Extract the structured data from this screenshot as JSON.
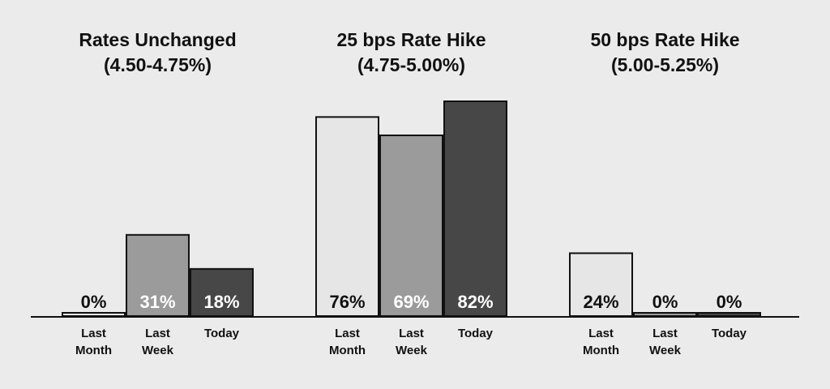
{
  "chart_data": {
    "type": "bar",
    "groups": [
      {
        "title_lines": [
          "Rates Unchanged",
          "(4.50-4.75%)"
        ]
      },
      {
        "title_lines": [
          "25 bps Rate Hike",
          "(4.75-5.00%)"
        ]
      },
      {
        "title_lines": [
          "50 bps Rate Hike",
          "(5.00-5.25%)"
        ]
      }
    ],
    "categories": [
      [
        "Last",
        "Month"
      ],
      [
        "Last",
        "Week"
      ],
      [
        "Today"
      ]
    ],
    "series": [
      {
        "values": [
          0,
          76,
          24
        ],
        "labels": [
          "0%",
          "76%",
          "24%"
        ]
      },
      {
        "values": [
          31,
          69,
          0
        ],
        "labels": [
          "31%",
          "69%",
          "0%"
        ]
      },
      {
        "values": [
          18,
          82,
          0
        ],
        "labels": [
          "18%",
          "82%",
          "0%"
        ]
      }
    ],
    "ylim": [
      0,
      82
    ],
    "grid": false,
    "colors": [
      "#e6e6e6",
      "#9b9b9b",
      "#474747"
    ],
    "label_colors": [
      "#111111",
      "#ffffff",
      "#ffffff"
    ],
    "label_color_low_values": "#111111"
  }
}
